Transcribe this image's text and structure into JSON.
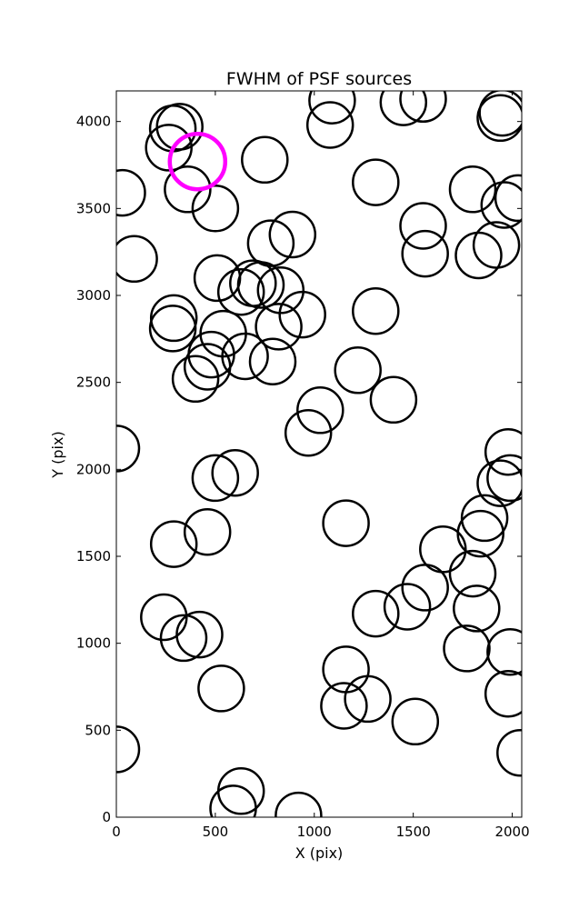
{
  "chart_data": {
    "type": "scatter",
    "title": "FWHM of PSF sources",
    "xlabel": "X (pix)",
    "ylabel": "Y (pix)",
    "xlim": [
      0,
      2048
    ],
    "ylim": [
      0,
      4176
    ],
    "xticks": [
      0,
      500,
      1000,
      1500,
      2000
    ],
    "yticks": [
      0,
      500,
      1000,
      1500,
      2000,
      2500,
      3000,
      3500,
      4000
    ],
    "grid": false,
    "marker_color": "#000000",
    "highlight_color": "#ff00ff",
    "series": [
      {
        "marker": "open-circle",
        "radius_pix": 115,
        "points": [
          [
            285,
            3960
          ],
          [
            320,
            3970
          ],
          [
            265,
            3850
          ],
          [
            360,
            3610
          ],
          [
            500,
            3500
          ],
          [
            30,
            3590
          ],
          [
            90,
            3210
          ],
          [
            750,
            3780
          ],
          [
            780,
            3300
          ],
          [
            890,
            3350
          ],
          [
            510,
            3100
          ],
          [
            630,
            3020
          ],
          [
            690,
            3070
          ],
          [
            730,
            3060
          ],
          [
            830,
            3030
          ],
          [
            820,
            2820
          ],
          [
            940,
            2890
          ],
          [
            290,
            2870
          ],
          [
            285,
            2810
          ],
          [
            540,
            2780
          ],
          [
            480,
            2660
          ],
          [
            460,
            2590
          ],
          [
            400,
            2520
          ],
          [
            650,
            2650
          ],
          [
            790,
            2620
          ],
          [
            1090,
            4120
          ],
          [
            1080,
            3980
          ],
          [
            1450,
            4110
          ],
          [
            1550,
            4130
          ],
          [
            1310,
            3650
          ],
          [
            1800,
            3610
          ],
          [
            1550,
            3400
          ],
          [
            1560,
            3240
          ],
          [
            1830,
            3230
          ],
          [
            1920,
            3290
          ],
          [
            1940,
            4020
          ],
          [
            1950,
            4050
          ],
          [
            1960,
            3520
          ],
          [
            2030,
            3560
          ],
          [
            1310,
            2910
          ],
          [
            1220,
            2570
          ],
          [
            1400,
            2400
          ],
          [
            1030,
            2340
          ],
          [
            970,
            2210
          ],
          [
            0,
            2120
          ],
          [
            500,
            1950
          ],
          [
            600,
            1980
          ],
          [
            290,
            1570
          ],
          [
            460,
            1640
          ],
          [
            1160,
            1690
          ],
          [
            1980,
            2100
          ],
          [
            1990,
            1950
          ],
          [
            1940,
            1920
          ],
          [
            1860,
            1720
          ],
          [
            1840,
            1630
          ],
          [
            1650,
            1540
          ],
          [
            1560,
            1320
          ],
          [
            1800,
            1400
          ],
          [
            1820,
            1200
          ],
          [
            1470,
            1210
          ],
          [
            1310,
            1170
          ],
          [
            1770,
            970
          ],
          [
            1990,
            950
          ],
          [
            1980,
            710
          ],
          [
            240,
            1150
          ],
          [
            340,
            1030
          ],
          [
            420,
            1050
          ],
          [
            530,
            740
          ],
          [
            1160,
            850
          ],
          [
            1150,
            640
          ],
          [
            1270,
            680
          ],
          [
            1510,
            550
          ],
          [
            0,
            390
          ],
          [
            2040,
            370
          ],
          [
            630,
            150
          ],
          [
            590,
            50
          ],
          [
            920,
            10
          ]
        ]
      },
      {
        "marker": "open-circle",
        "highlight": true,
        "radius_pix": 140,
        "points": [
          [
            410,
            3770
          ]
        ]
      }
    ]
  }
}
